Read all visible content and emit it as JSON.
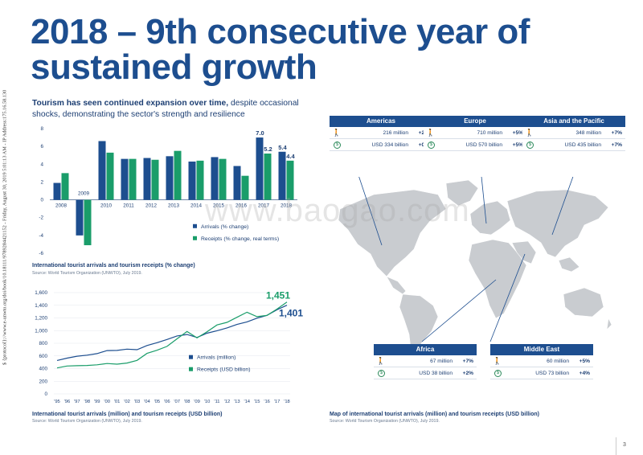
{
  "side_text": "$ {protocol}://www.e-unwto.org/doi/book/10.18111/9789284421152 - Friday, August 30, 2019 5:01:13 AM - IP Address:175.16.58.130",
  "title_line1": "2018 – 9th consecutive year of",
  "title_line2": "sustained growth",
  "subtitle_bold": "Tourism has seen continued expansion over time,",
  "subtitle_rest": " despite occasional shocks, demonstrating the sector's strength and resilience",
  "watermark": "www.baogao.com",
  "colors": {
    "arrivals": "#1d4e8f",
    "receipts": "#1a9d6a",
    "map_land": "#c9ccd0",
    "title": "#1d4e8f"
  },
  "chart_data": [
    {
      "type": "bar",
      "categories": [
        "2008",
        "2009",
        "2010",
        "2011",
        "2012",
        "2013",
        "2014",
        "2015",
        "2016",
        "2017",
        "2018"
      ],
      "series": [
        {
          "name": "Arrivals (% change)",
          "values": [
            1.9,
            -4.0,
            6.6,
            4.6,
            4.7,
            4.9,
            4.3,
            4.8,
            3.8,
            7.0,
            5.4
          ]
        },
        {
          "name": "Receipts (% change, real terms)",
          "values": [
            3.0,
            -5.1,
            5.3,
            4.6,
            4.5,
            5.5,
            4.4,
            4.6,
            2.7,
            5.2,
            4.4
          ]
        }
      ],
      "ylim": [
        -6,
        8
      ],
      "yticks": [
        "8",
        "6",
        "4",
        "2",
        "0",
        "-2",
        "-4",
        "-6"
      ],
      "data_labels": [
        "2009",
        "7.0",
        "5.2",
        "5.4",
        "4.4"
      ],
      "legend": "bottom-right",
      "caption": "International tourist arrivals and tourism receipts (% change)",
      "source": "Source: World Tourism Organization (UNWTO), July 2019."
    },
    {
      "type": "line",
      "x": [
        "'95",
        "'96",
        "'97",
        "'98",
        "'99",
        "'00",
        "'01",
        "'02",
        "'03",
        "'04",
        "'05",
        "'06",
        "'07",
        "'08",
        "'09",
        "'10",
        "'11",
        "'12",
        "'13",
        "'14",
        "'15",
        "'16",
        "'17",
        "'18"
      ],
      "series": [
        {
          "name": "Arrivals (million)",
          "values": [
            528,
            565,
            596,
            612,
            636,
            684,
            687,
            707,
            699,
            764,
            809,
            860,
            916,
            938,
            892,
            959,
            998,
            1043,
            1097,
            1138,
            1196,
            1241,
            1330,
            1401
          ]
        },
        {
          "name": "Receipts (USD billion)",
          "values": [
            410,
            440,
            446,
            450,
            460,
            480,
            470,
            488,
            530,
            640,
            690,
            750,
            870,
            985,
            885,
            980,
            1090,
            1130,
            1210,
            1290,
            1220,
            1240,
            1340,
            1451
          ]
        }
      ],
      "ylim": [
        0,
        1600
      ],
      "yticks": [
        "1,600",
        "1,400",
        "1,200",
        "1,000",
        "800",
        "600",
        "400",
        "200",
        "0"
      ],
      "end_labels": {
        "receipts": "1,451",
        "arrivals": "1,401"
      },
      "legend": "center-right",
      "caption": "International tourist arrivals (million) and tourism receipts (USD billion)",
      "source": "Source: World Tourism Organization (UNWTO), July 2019."
    }
  ],
  "regions": [
    {
      "name": "Americas",
      "arrivals": "216 million",
      "arrivals_change": "+2%",
      "receipts": "USD 334 billion",
      "receipts_change": "+0%"
    },
    {
      "name": "Europe",
      "arrivals": "710 million",
      "arrivals_change": "+5%",
      "receipts": "USD 570 billion",
      "receipts_change": "+5%"
    },
    {
      "name": "Asia and the Pacific",
      "arrivals": "348 million",
      "arrivals_change": "+7%",
      "receipts": "USD 435 billion",
      "receipts_change": "+7%"
    },
    {
      "name": "Africa",
      "arrivals": "67 million",
      "arrivals_change": "+7%",
      "receipts": "USD 38 billion",
      "receipts_change": "+2%"
    },
    {
      "name": "Middle East",
      "arrivals": "60 million",
      "arrivals_change": "+5%",
      "receipts": "USD 73 billion",
      "receipts_change": "+4%"
    }
  ],
  "map_caption": "Map of international tourist arrivals (million) and tourism receipts (USD billion)",
  "map_source": "Source: World Tourism Organization (UNWTO), July 2019.",
  "page_number": "3",
  "icons": {
    "traveller": "traveller-icon",
    "money": "dollar-coin-icon"
  },
  "money_symbol": "$"
}
